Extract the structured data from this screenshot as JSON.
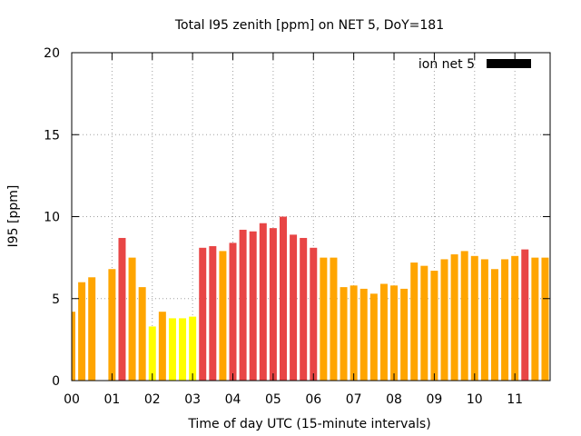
{
  "chart_data": {
    "type": "bar",
    "title": "Total I95 zenith [ppm] on NET 5, DoY=181",
    "xlabel": "Time of day UTC (15-minute intervals)",
    "ylabel": "I95 [ppm]",
    "ylim": [
      0,
      20
    ],
    "xlim": [
      0,
      11.75
    ],
    "bar_interval_hours": 0.25,
    "grid": true,
    "legend_position": "top-right",
    "legend": [
      {
        "name": "ion net 5",
        "color": "#000000"
      }
    ],
    "yticks": [
      {
        "value": 0,
        "label": "0"
      },
      {
        "value": 5,
        "label": "5"
      },
      {
        "value": 10,
        "label": "10"
      },
      {
        "value": 15,
        "label": "15"
      },
      {
        "value": 20,
        "label": "20"
      }
    ],
    "xticks": [
      {
        "value": 0,
        "label": "00"
      },
      {
        "value": 1,
        "label": "01"
      },
      {
        "value": 2,
        "label": "02"
      },
      {
        "value": 3,
        "label": "03"
      },
      {
        "value": 4,
        "label": "04"
      },
      {
        "value": 5,
        "label": "05"
      },
      {
        "value": 6,
        "label": "06"
      },
      {
        "value": 7,
        "label": "07"
      },
      {
        "value": 8,
        "label": "08"
      },
      {
        "value": 9,
        "label": "09"
      },
      {
        "value": 10,
        "label": "10"
      },
      {
        "value": 11,
        "label": "11"
      }
    ],
    "colors": {
      "orange": "#ffa500",
      "red": "#e84545",
      "yellow": "#ffff00"
    },
    "bars": [
      {
        "x": 0.0,
        "value": 4.2,
        "color": "orange"
      },
      {
        "x": 0.25,
        "value": 6.0,
        "color": "orange"
      },
      {
        "x": 0.5,
        "value": 6.3,
        "color": "orange"
      },
      {
        "x": 1.0,
        "value": 6.8,
        "color": "orange"
      },
      {
        "x": 1.25,
        "value": 8.7,
        "color": "red"
      },
      {
        "x": 1.5,
        "value": 7.5,
        "color": "orange"
      },
      {
        "x": 1.75,
        "value": 5.7,
        "color": "orange"
      },
      {
        "x": 2.0,
        "value": 3.3,
        "color": "yellow"
      },
      {
        "x": 2.25,
        "value": 4.2,
        "color": "orange"
      },
      {
        "x": 2.5,
        "value": 3.8,
        "color": "yellow"
      },
      {
        "x": 2.75,
        "value": 3.8,
        "color": "yellow"
      },
      {
        "x": 3.0,
        "value": 3.9,
        "color": "yellow"
      },
      {
        "x": 3.25,
        "value": 8.1,
        "color": "red"
      },
      {
        "x": 3.5,
        "value": 8.2,
        "color": "red"
      },
      {
        "x": 3.75,
        "value": 7.9,
        "color": "orange"
      },
      {
        "x": 4.0,
        "value": 8.4,
        "color": "red"
      },
      {
        "x": 4.25,
        "value": 9.2,
        "color": "red"
      },
      {
        "x": 4.5,
        "value": 9.1,
        "color": "red"
      },
      {
        "x": 4.75,
        "value": 9.6,
        "color": "red"
      },
      {
        "x": 5.0,
        "value": 9.3,
        "color": "red"
      },
      {
        "x": 5.25,
        "value": 10.0,
        "color": "red"
      },
      {
        "x": 5.5,
        "value": 8.9,
        "color": "red"
      },
      {
        "x": 5.75,
        "value": 8.7,
        "color": "red"
      },
      {
        "x": 6.0,
        "value": 8.1,
        "color": "red"
      },
      {
        "x": 6.25,
        "value": 7.5,
        "color": "orange"
      },
      {
        "x": 6.5,
        "value": 7.5,
        "color": "orange"
      },
      {
        "x": 6.75,
        "value": 5.7,
        "color": "orange"
      },
      {
        "x": 7.0,
        "value": 5.8,
        "color": "orange"
      },
      {
        "x": 7.25,
        "value": 5.6,
        "color": "orange"
      },
      {
        "x": 7.5,
        "value": 5.3,
        "color": "orange"
      },
      {
        "x": 7.75,
        "value": 5.9,
        "color": "orange"
      },
      {
        "x": 8.0,
        "value": 5.8,
        "color": "orange"
      },
      {
        "x": 8.25,
        "value": 5.6,
        "color": "orange"
      },
      {
        "x": 8.5,
        "value": 7.2,
        "color": "orange"
      },
      {
        "x": 8.75,
        "value": 7.0,
        "color": "orange"
      },
      {
        "x": 9.0,
        "value": 6.7,
        "color": "orange"
      },
      {
        "x": 9.25,
        "value": 7.4,
        "color": "orange"
      },
      {
        "x": 9.5,
        "value": 7.7,
        "color": "orange"
      },
      {
        "x": 9.75,
        "value": 7.9,
        "color": "orange"
      },
      {
        "x": 10.0,
        "value": 7.6,
        "color": "orange"
      },
      {
        "x": 10.25,
        "value": 7.4,
        "color": "orange"
      },
      {
        "x": 10.5,
        "value": 6.8,
        "color": "orange"
      },
      {
        "x": 10.75,
        "value": 7.4,
        "color": "orange"
      },
      {
        "x": 11.0,
        "value": 7.6,
        "color": "orange"
      },
      {
        "x": 11.25,
        "value": 8.0,
        "color": "red"
      },
      {
        "x": 11.5,
        "value": 7.5,
        "color": "orange"
      },
      {
        "x": 11.75,
        "value": 7.5,
        "color": "orange"
      }
    ]
  }
}
